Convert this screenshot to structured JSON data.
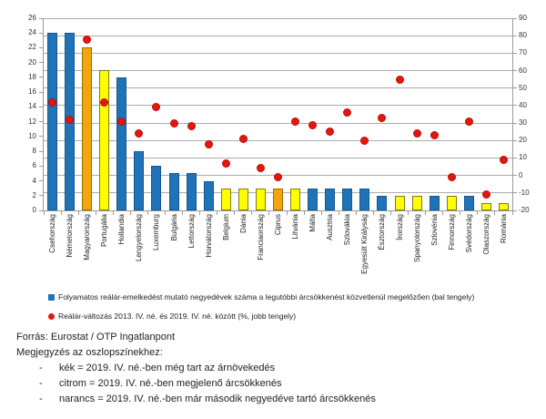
{
  "colors": {
    "blue": "#1F73B9",
    "blue_border": "#15588E",
    "yellow": "#FFFF00",
    "yellow_border": "#7C7C12",
    "orange": "#F2A50C",
    "orange_border": "#9A6D00",
    "red": "#E8150D",
    "red_border": "#B50E08",
    "gridline": "#ADADAD",
    "axis": "#9B9B9B"
  },
  "chart_data": {
    "type": "bar",
    "subtype": "combo bar + scatter, dual y-axis",
    "title": "",
    "xlabel": "",
    "ylabel": "",
    "grid": "horizontal gridlines at right-axis steps",
    "legend_position": "bottom-left",
    "left_axis": {
      "min": 0,
      "max": 26,
      "step": 2
    },
    "right_axis": {
      "min": -20,
      "max": 90,
      "step": 10
    },
    "categories": [
      "Csehország",
      "Németország",
      "Magyarország",
      "Portugália",
      "Hollandia",
      "Lengyelország",
      "Luxemburg",
      "Bulgária",
      "Lettország",
      "Horvátország",
      "Belgium",
      "Dánia",
      "Franciaország",
      "Ciprus",
      "Litvánia",
      "Málta",
      "Ausztria",
      "Szlovákia",
      "Egyesült Királyság",
      "Észtország",
      "Írország",
      "Spanyolország",
      "Szlovénia",
      "Finnország",
      "Svédország",
      "Olaszország",
      "Románia"
    ],
    "series": [
      {
        "name": "Folyamatos reálár-emelkedést mutató negyedévek száma a legutóbbi árcsökkenést közvetlenül megelőzően (bal tengely)",
        "type": "bar",
        "axis": "left",
        "values": [
          24,
          24,
          22,
          19,
          18,
          8,
          6,
          5,
          5,
          4,
          3,
          3,
          3,
          3,
          3,
          3,
          3,
          3,
          3,
          2,
          2,
          2,
          2,
          2,
          2,
          1,
          1
        ],
        "bar_colors": [
          "blue",
          "blue",
          "orange",
          "yellow",
          "blue",
          "blue",
          "blue",
          "blue",
          "blue",
          "blue",
          "yellow",
          "yellow",
          "yellow",
          "orange",
          "yellow",
          "blue",
          "blue",
          "blue",
          "blue",
          "blue",
          "yellow",
          "yellow",
          "blue",
          "yellow",
          "blue",
          "yellow",
          "yellow"
        ]
      },
      {
        "name": "Reálár-változás 2013. IV. né. és 2019. IV. né. között (%, jobb tengely)",
        "type": "scatter",
        "axis": "right",
        "values": [
          42,
          32,
          78,
          42,
          31,
          24,
          39,
          30,
          28,
          18,
          7,
          21,
          4,
          -1,
          31,
          29,
          25,
          36,
          20,
          33,
          55,
          24,
          23,
          -1,
          31,
          -11,
          9
        ]
      }
    ]
  },
  "notes": {
    "source": "Forrás: Eurostat / OTP Ingatlanpont",
    "heading": "Megjegyzés az oszlopszínekhez:",
    "bullets": [
      {
        "dash": "-",
        "text": "kék = 2019. IV. né.-ben még tart az árnövekedés"
      },
      {
        "dash": "-",
        "text": "citrom = 2019. IV. né.-ben megjelenő árcsökkenés"
      },
      {
        "dash": "-",
        "text": "narancs = 2019. IV. né.-ben már második negyedéve tartó árcsökkenés"
      }
    ]
  }
}
